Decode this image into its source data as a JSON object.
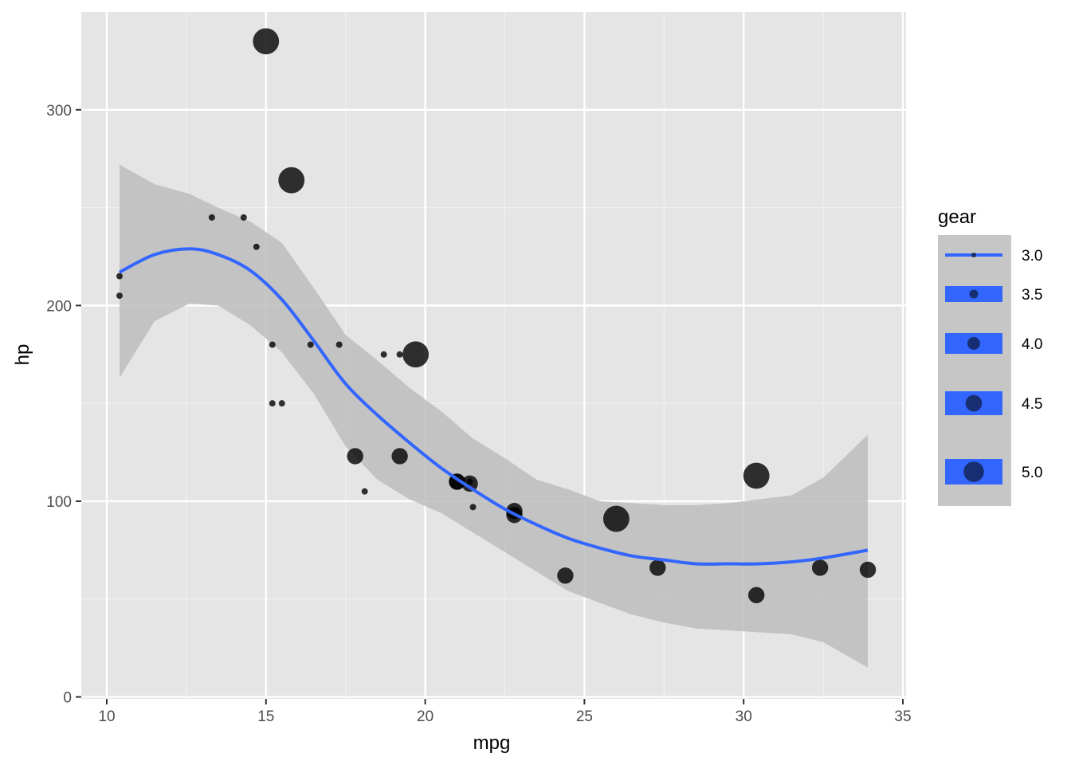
{
  "chart_data": {
    "type": "scatter",
    "xlabel": "mpg",
    "ylabel": "hp",
    "xlim": [
      9.2,
      35.1
    ],
    "ylim": [
      -1,
      350
    ],
    "x_ticks": [
      10,
      15,
      20,
      25,
      30,
      35
    ],
    "x_tick_labels": [
      "10",
      "15",
      "20",
      "25",
      "30",
      "35"
    ],
    "y_ticks": [
      0,
      100,
      200,
      300
    ],
    "y_tick_labels": [
      "0",
      "100",
      "200",
      "300"
    ],
    "x_minor_ticks": [
      12.5,
      17.5,
      22.5,
      27.5,
      32.5
    ],
    "y_minor_ticks": [
      50,
      150,
      250
    ],
    "grid": true,
    "size_variable": "gear",
    "points": [
      {
        "x": 21.0,
        "y": 110,
        "gear": 4
      },
      {
        "x": 21.0,
        "y": 110,
        "gear": 4
      },
      {
        "x": 22.8,
        "y": 93,
        "gear": 4
      },
      {
        "x": 21.4,
        "y": 110,
        "gear": 3
      },
      {
        "x": 18.7,
        "y": 175,
        "gear": 3
      },
      {
        "x": 18.1,
        "y": 105,
        "gear": 3
      },
      {
        "x": 14.3,
        "y": 245,
        "gear": 3
      },
      {
        "x": 24.4,
        "y": 62,
        "gear": 4
      },
      {
        "x": 22.8,
        "y": 95,
        "gear": 4
      },
      {
        "x": 19.2,
        "y": 123,
        "gear": 4
      },
      {
        "x": 17.8,
        "y": 123,
        "gear": 4
      },
      {
        "x": 16.4,
        "y": 180,
        "gear": 3
      },
      {
        "x": 17.3,
        "y": 180,
        "gear": 3
      },
      {
        "x": 15.2,
        "y": 180,
        "gear": 3
      },
      {
        "x": 10.4,
        "y": 205,
        "gear": 3
      },
      {
        "x": 10.4,
        "y": 215,
        "gear": 3
      },
      {
        "x": 14.7,
        "y": 230,
        "gear": 3
      },
      {
        "x": 32.4,
        "y": 66,
        "gear": 4
      },
      {
        "x": 30.4,
        "y": 52,
        "gear": 4
      },
      {
        "x": 33.9,
        "y": 65,
        "gear": 4
      },
      {
        "x": 21.5,
        "y": 97,
        "gear": 3
      },
      {
        "x": 15.5,
        "y": 150,
        "gear": 3
      },
      {
        "x": 15.2,
        "y": 150,
        "gear": 3
      },
      {
        "x": 13.3,
        "y": 245,
        "gear": 3
      },
      {
        "x": 19.2,
        "y": 175,
        "gear": 3
      },
      {
        "x": 27.3,
        "y": 66,
        "gear": 4
      },
      {
        "x": 26.0,
        "y": 91,
        "gear": 5
      },
      {
        "x": 30.4,
        "y": 113,
        "gear": 5
      },
      {
        "x": 15.8,
        "y": 264,
        "gear": 5
      },
      {
        "x": 19.7,
        "y": 175,
        "gear": 5
      },
      {
        "x": 15.0,
        "y": 335,
        "gear": 5
      },
      {
        "x": 21.4,
        "y": 109,
        "gear": 4
      }
    ],
    "smooth_fit": {
      "x": [
        10.4,
        11.5,
        12.6,
        13.5,
        14.5,
        15.5,
        16.5,
        17.5,
        18.5,
        19.5,
        20.5,
        21.5,
        22.5,
        23.5,
        24.5,
        25.5,
        26.5,
        27.5,
        28.5,
        29.5,
        30.5,
        31.5,
        32.5,
        33.9
      ],
      "y": [
        217,
        226,
        229,
        226,
        218,
        203,
        182,
        160,
        144,
        130,
        117,
        106,
        96,
        88,
        81,
        76,
        72,
        70,
        68,
        68,
        68,
        69,
        71,
        75
      ],
      "lower": [
        163,
        192,
        201,
        200,
        190,
        176,
        155,
        128,
        111,
        101,
        94,
        84,
        74,
        64,
        54,
        48,
        42,
        38,
        35,
        34,
        33,
        32,
        28,
        15
      ],
      "upper": [
        272,
        262,
        257,
        250,
        243,
        232,
        209,
        185,
        172,
        158,
        146,
        132,
        122,
        111,
        106,
        100,
        99,
        98,
        98,
        99,
        101,
        103,
        112,
        134
      ]
    },
    "colors": {
      "panel": "#e5e5e5",
      "grid_major": "#ffffff",
      "grid_minor": "#f0f0f0",
      "point": "#000000",
      "smooth_line": "#3366ff",
      "ribbon": "#bdbdbd"
    }
  },
  "legend": {
    "title": "gear",
    "items": [
      {
        "label": "3.0",
        "value": 3.0
      },
      {
        "label": "3.5",
        "value": 3.5
      },
      {
        "label": "4.0",
        "value": 4.0
      },
      {
        "label": "4.5",
        "value": 4.5
      },
      {
        "label": "5.0",
        "value": 5.0
      }
    ]
  }
}
